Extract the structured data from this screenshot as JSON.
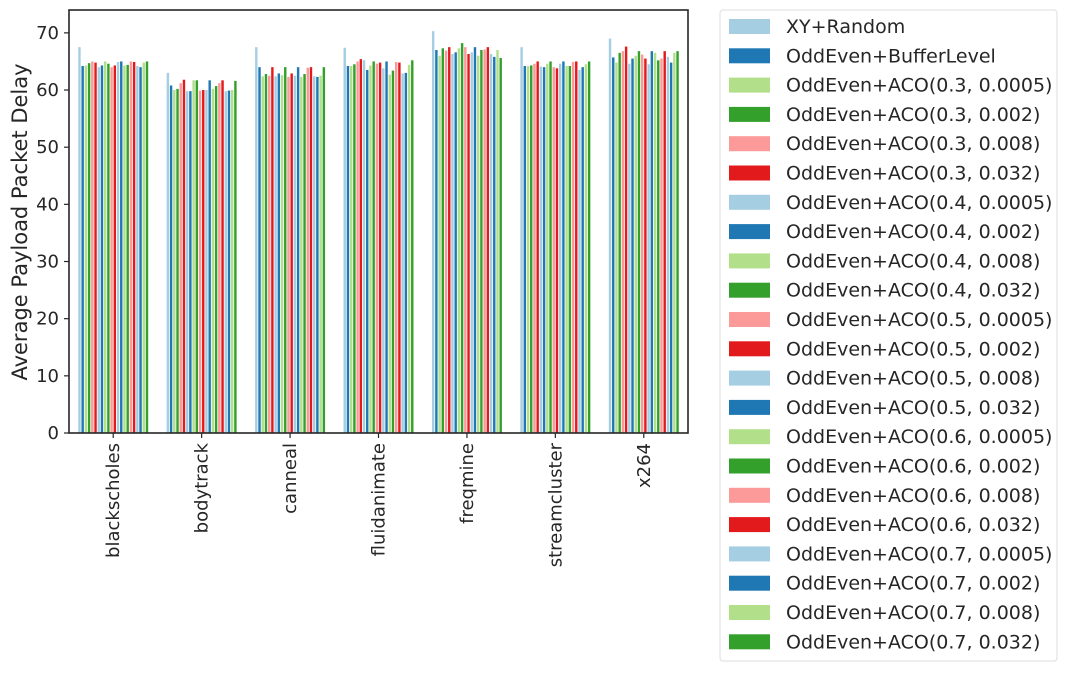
{
  "chart_data": {
    "type": "bar",
    "xlabel": "",
    "ylabel": "Average Payload Packet Delay",
    "ylim": [
      0,
      74
    ],
    "yticks": [
      0,
      10,
      20,
      30,
      40,
      50,
      60,
      70
    ],
    "grid": false,
    "legend_position": "outside-right",
    "categories": [
      "blackscholes",
      "bodytrack",
      "canneal",
      "fluidanimate",
      "freqmine",
      "streamcluster",
      "x264"
    ],
    "palette": [
      "#a6cee3",
      "#1f78b4",
      "#b2df8a",
      "#33a02c",
      "#fb9a99",
      "#e31a1c"
    ],
    "series": [
      {
        "name": "XY+Random",
        "values": [
          67.5,
          63.0,
          67.5,
          67.4,
          70.3,
          67.5,
          69.0
        ]
      },
      {
        "name": "OddEven+BufferLevel",
        "values": [
          64.2,
          60.8,
          64.0,
          64.2,
          67.0,
          64.2,
          65.7
        ]
      },
      {
        "name": "OddEven+ACO(0.3, 0.0005)",
        "values": [
          64.3,
          60.0,
          62.4,
          64.2,
          66.0,
          64.2,
          64.8
        ]
      },
      {
        "name": "OddEven+ACO(0.3, 0.002)",
        "values": [
          64.7,
          60.2,
          62.8,
          64.5,
          67.3,
          64.3,
          66.5
        ]
      },
      {
        "name": "OddEven+ACO(0.3, 0.008)",
        "values": [
          65.0,
          61.2,
          62.5,
          65.0,
          66.9,
          64.6,
          66.8
        ]
      },
      {
        "name": "OddEven+ACO(0.3, 0.032)",
        "values": [
          64.8,
          61.8,
          64.0,
          65.4,
          67.5,
          65.0,
          67.6
        ]
      },
      {
        "name": "OddEven+ACO(0.4, 0.0005)",
        "values": [
          64.0,
          59.8,
          62.4,
          65.2,
          66.3,
          64.1,
          64.6
        ]
      },
      {
        "name": "OddEven+ACO(0.4, 0.002)",
        "values": [
          64.3,
          59.8,
          62.9,
          63.5,
          66.6,
          64.0,
          65.5
        ]
      },
      {
        "name": "OddEven+ACO(0.4, 0.008)",
        "values": [
          65.0,
          61.7,
          62.6,
          64.3,
          67.3,
          64.6,
          66.0
        ]
      },
      {
        "name": "OddEven+ACO(0.4, 0.032)",
        "values": [
          64.6,
          61.7,
          64.0,
          65.0,
          68.2,
          65.0,
          66.8
        ]
      },
      {
        "name": "OddEven+ACO(0.5, 0.0005)",
        "values": [
          64.0,
          59.9,
          62.3,
          64.6,
          67.5,
          64.0,
          66.2
        ]
      },
      {
        "name": "OddEven+ACO(0.5, 0.002)",
        "values": [
          64.3,
          60.0,
          62.9,
          64.8,
          66.3,
          63.8,
          65.5
        ]
      },
      {
        "name": "OddEven+ACO(0.5, 0.008)",
        "values": [
          64.9,
          60.0,
          62.5,
          63.8,
          66.6,
          64.6,
          64.5
        ]
      },
      {
        "name": "OddEven+ACO(0.5, 0.032)",
        "values": [
          65.0,
          61.7,
          64.0,
          65.0,
          67.5,
          65.0,
          66.8
        ]
      },
      {
        "name": "OddEven+ACO(0.6, 0.0005)",
        "values": [
          64.3,
          60.2,
          62.3,
          62.7,
          66.0,
          64.2,
          66.5
        ]
      },
      {
        "name": "OddEven+ACO(0.6, 0.002)",
        "values": [
          64.4,
          60.7,
          62.8,
          63.4,
          67.0,
          64.2,
          65.2
        ]
      },
      {
        "name": "OddEven+ACO(0.6, 0.008)",
        "values": [
          65.0,
          61.2,
          63.9,
          64.9,
          67.1,
          64.9,
          65.5
        ]
      },
      {
        "name": "OddEven+ACO(0.6, 0.032)",
        "values": [
          64.9,
          61.7,
          64.0,
          64.8,
          67.5,
          65.0,
          66.8
        ]
      },
      {
        "name": "OddEven+ACO(0.7, 0.0005)",
        "values": [
          64.2,
          59.8,
          62.4,
          62.9,
          66.3,
          63.5,
          65.8
        ]
      },
      {
        "name": "OddEven+ACO(0.7, 0.002)",
        "values": [
          64.0,
          59.9,
          62.3,
          63.0,
          65.8,
          64.0,
          64.8
        ]
      },
      {
        "name": "OddEven+ACO(0.7, 0.008)",
        "values": [
          64.8,
          60.0,
          62.5,
          64.4,
          67.0,
          64.5,
          66.5
        ]
      },
      {
        "name": "OddEven+ACO(0.7, 0.032)",
        "values": [
          65.0,
          61.6,
          64.0,
          65.2,
          65.6,
          65.0,
          66.8
        ]
      }
    ]
  }
}
